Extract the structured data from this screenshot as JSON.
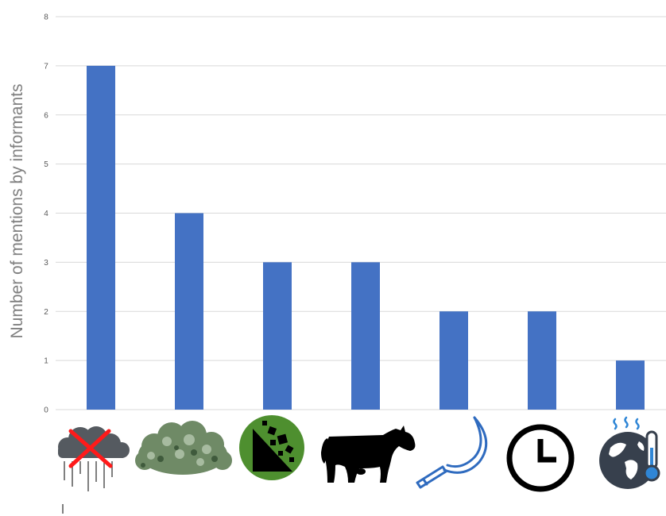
{
  "chart_data": {
    "type": "bar",
    "title": "",
    "xlabel": "",
    "ylabel": "Number of mentions by informants",
    "ylim": [
      0,
      8
    ],
    "yticks": [
      "0",
      "1",
      "2",
      "3",
      "4",
      "5",
      "6",
      "7",
      "8"
    ],
    "grid": true,
    "legend": "none",
    "bar_color": "#4472c4",
    "categories": [
      "storm-cloud-icon",
      "shrub-icon",
      "landslide-icon",
      "cow-icon",
      "sickle-icon",
      "clock-icon",
      "globe-thermometer-icon"
    ],
    "values": [
      7,
      4,
      3,
      3,
      2,
      2,
      1
    ]
  }
}
